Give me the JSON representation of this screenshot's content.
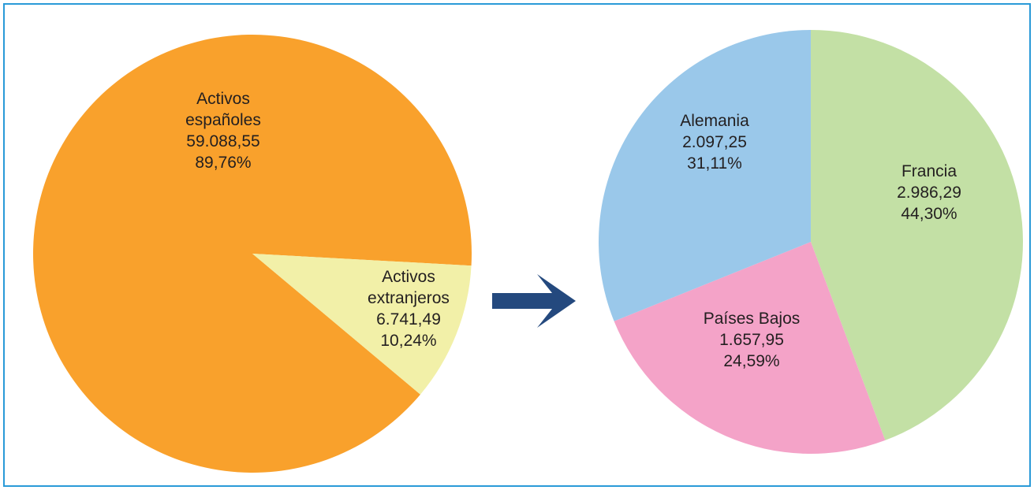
{
  "chart_data": [
    {
      "type": "pie",
      "categories": [
        "Activos españoles",
        "Activos extranjeros"
      ],
      "values": [
        59088.55,
        6741.49
      ],
      "value_labels": [
        "59.088,55",
        "6.741,49"
      ],
      "percentages": [
        89.76,
        10.24
      ],
      "percentage_labels": [
        "89,76%",
        "10,24%"
      ],
      "colors": [
        "#f9a12c",
        "#f2f0a8"
      ]
    },
    {
      "type": "pie",
      "categories": [
        "Francia",
        "Países Bajos",
        "Alemania"
      ],
      "values": [
        2986.29,
        1657.95,
        2097.25
      ],
      "value_labels": [
        "2.986,29",
        "1.657,95",
        "2.097,25"
      ],
      "percentages": [
        44.3,
        24.59,
        31.11
      ],
      "percentage_labels": [
        "44,30%",
        "24,59%",
        "31,11%"
      ],
      "colors": [
        "#c3e0a5",
        "#f4a3c8",
        "#9ac8ea"
      ]
    }
  ]
}
